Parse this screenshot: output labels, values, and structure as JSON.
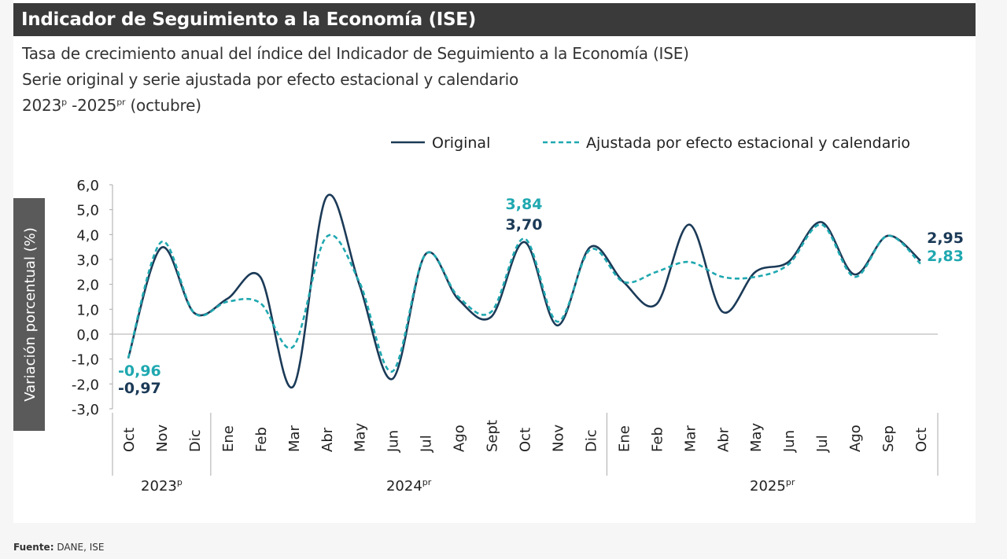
{
  "header": {
    "title": "Indicador de Seguimiento a la Economía (ISE)",
    "subtitle_1": "Tasa de crecimiento anual del índice del Indicador de Seguimiento a la Economía (ISE)",
    "subtitle_2": "Serie original y serie ajustada por efecto estacional y calendario",
    "period_start": "2023",
    "period_start_sup": "p",
    "period_sep": " -2025",
    "period_end_sup": "pr",
    "period_note": " (octubre)"
  },
  "footer": {
    "label": "Fuente:",
    "text": " DANE, ISE"
  },
  "chart_data": {
    "type": "line",
    "ylabel": "Variación porcentual (%)",
    "ylim": [
      -3.0,
      6.0
    ],
    "yticks": [
      "6,0",
      "5,0",
      "4,0",
      "3,0",
      "2,0",
      "1,0",
      "0,0",
      "-1,0",
      "-2,0",
      "-3,0"
    ],
    "grid": false,
    "legend_position": "top-right",
    "categories": [
      "Oct",
      "Nov",
      "Dic",
      "Ene",
      "Feb",
      "Mar",
      "Abr",
      "May",
      "Jun",
      "Jul",
      "Ago",
      "Sept",
      "Oct",
      "Nov",
      "Dic",
      "Ene",
      "Feb",
      "Mar",
      "Abr",
      "May",
      "Jun",
      "Jul",
      "Ago",
      "Sep",
      "Oct"
    ],
    "year_groups": [
      {
        "label": "2023",
        "sup": "p",
        "count": 3
      },
      {
        "label": "2024",
        "sup": "pr",
        "count": 12
      },
      {
        "label": "2025",
        "sup": "pr",
        "count": 10
      }
    ],
    "series": [
      {
        "name": "Original",
        "color": "#1b3a57",
        "style": "solid",
        "values": [
          -0.97,
          3.47,
          0.85,
          1.42,
          2.3,
          -2.1,
          5.5,
          2.0,
          -1.8,
          3.2,
          1.4,
          0.7,
          3.7,
          0.35,
          3.5,
          2.1,
          1.2,
          4.4,
          0.9,
          2.5,
          2.9,
          4.5,
          2.4,
          3.95,
          2.95
        ]
      },
      {
        "name": "Ajustada por efecto estacional y calendario",
        "color": "#1fa8b0",
        "style": "dashed",
        "values": [
          -0.96,
          3.7,
          0.85,
          1.3,
          1.25,
          -0.5,
          3.9,
          2.1,
          -1.5,
          3.2,
          1.5,
          0.9,
          3.84,
          0.5,
          3.4,
          2.1,
          2.5,
          2.9,
          2.3,
          2.3,
          2.8,
          4.4,
          2.3,
          3.95,
          2.83
        ]
      }
    ],
    "annotations": [
      {
        "text": "-0,96",
        "series": 1,
        "index": 0
      },
      {
        "text": "-0,97",
        "series": 0,
        "index": 0
      },
      {
        "text": "3,84",
        "series": 1,
        "index": 12
      },
      {
        "text": "3,70",
        "series": 0,
        "index": 12
      },
      {
        "text": "2,95",
        "series": 0,
        "index": 24
      },
      {
        "text": "2,83",
        "series": 1,
        "index": 24
      }
    ]
  }
}
